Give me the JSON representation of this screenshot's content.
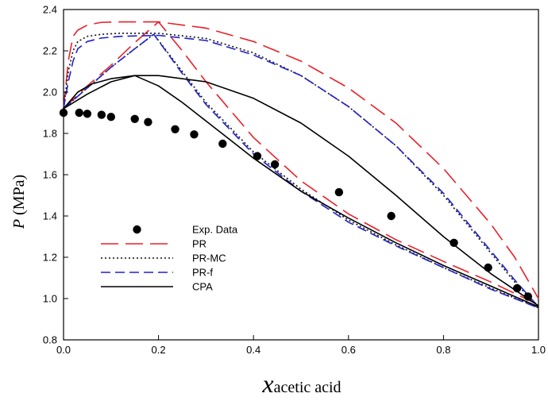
{
  "chart_data": {
    "type": "line",
    "title": "",
    "xlabel_main": "x",
    "xlabel_sub": "acetic acid",
    "ylabel_main": "P",
    "ylabel_unit": " (MPa)",
    "xlim": [
      0,
      1
    ],
    "ylim": [
      0.8,
      2.4
    ],
    "grid": false,
    "legend_position": "lower-left",
    "x_ticks": [
      "0.0",
      "0.2",
      "0.4",
      "0.6",
      "0.8",
      "1.0"
    ],
    "y_ticks": [
      "0.8",
      "1.0",
      "1.2",
      "1.4",
      "1.6",
      "1.8",
      "2.0",
      "2.2",
      "2.4"
    ],
    "experimental": {
      "name": "Exp. Data",
      "x": [
        0.0,
        0.033,
        0.05,
        0.08,
        0.1,
        0.15,
        0.178,
        0.235,
        0.275,
        0.335,
        0.408,
        0.445,
        0.58,
        0.69,
        0.822,
        0.894,
        0.955,
        0.978
      ],
      "y": [
        1.9,
        1.9,
        1.895,
        1.89,
        1.88,
        1.87,
        1.855,
        1.82,
        1.795,
        1.75,
        1.69,
        1.65,
        1.515,
        1.4,
        1.27,
        1.15,
        1.05,
        1.01
      ]
    },
    "series": [
      {
        "name": "PR",
        "color": "#e8202a",
        "dash": "long-dash",
        "branches": [
          {
            "x": [
              0.0,
              0.01,
              0.02,
              0.03,
              0.05,
              0.08,
              0.12,
              0.2,
              0.3,
              0.4,
              0.5,
              0.6,
              0.7,
              0.8,
              0.9,
              0.95,
              1.0
            ],
            "y": [
              1.92,
              2.15,
              2.27,
              2.3,
              2.325,
              2.338,
              2.34,
              2.34,
              2.31,
              2.245,
              2.15,
              2.02,
              1.85,
              1.63,
              1.36,
              1.2,
              1.0
            ]
          },
          {
            "x": [
              0.0,
              0.05,
              0.1,
              0.15,
              0.2,
              0.25,
              0.3,
              0.4,
              0.5,
              0.6,
              0.7,
              0.8,
              0.9,
              1.0
            ],
            "y": [
              1.92,
              2.03,
              2.13,
              2.24,
              2.34,
              2.2,
              2.05,
              1.78,
              1.57,
              1.41,
              1.285,
              1.18,
              1.08,
              0.97
            ]
          }
        ]
      },
      {
        "name": "PR-MC",
        "color": "#111111",
        "dash": "dotted",
        "branches": [
          {
            "x": [
              0.0,
              0.01,
              0.02,
              0.03,
              0.05,
              0.08,
              0.12,
              0.2,
              0.3,
              0.4,
              0.5,
              0.6,
              0.7,
              0.8,
              0.9,
              0.95,
              1.0
            ],
            "y": [
              1.92,
              2.1,
              2.2,
              2.245,
              2.27,
              2.28,
              2.285,
              2.285,
              2.26,
              2.19,
              2.08,
              1.93,
              1.74,
              1.5,
              1.22,
              1.08,
              0.96
            ]
          },
          {
            "x": [
              0.0,
              0.05,
              0.1,
              0.15,
              0.19,
              0.25,
              0.3,
              0.4,
              0.5,
              0.6,
              0.7,
              0.8,
              0.9,
              1.0
            ],
            "y": [
              1.92,
              2.02,
              2.12,
              2.21,
              2.28,
              2.1,
              1.95,
              1.71,
              1.53,
              1.38,
              1.26,
              1.15,
              1.05,
              0.955
            ]
          }
        ]
      },
      {
        "name": "PR-f",
        "color": "#2020c8",
        "dash": "dash",
        "branches": [
          {
            "x": [
              0.0,
              0.01,
              0.02,
              0.03,
              0.05,
              0.08,
              0.12,
              0.2,
              0.3,
              0.4,
              0.5,
              0.6,
              0.7,
              0.8,
              0.9,
              0.95,
              1.0
            ],
            "y": [
              1.92,
              2.05,
              2.15,
              2.21,
              2.245,
              2.262,
              2.27,
              2.275,
              2.25,
              2.18,
              2.08,
              1.93,
              1.74,
              1.51,
              1.23,
              1.09,
              0.96
            ]
          },
          {
            "x": [
              0.0,
              0.05,
              0.1,
              0.15,
              0.19,
              0.25,
              0.3,
              0.4,
              0.5,
              0.6,
              0.7,
              0.8,
              0.9,
              1.0
            ],
            "y": [
              1.92,
              2.02,
              2.12,
              2.21,
              2.28,
              2.09,
              1.94,
              1.7,
              1.52,
              1.37,
              1.255,
              1.15,
              1.045,
              0.955
            ]
          }
        ]
      },
      {
        "name": "CPA",
        "color": "#000000",
        "dash": "solid",
        "branches": [
          {
            "x": [
              0.0,
              0.03,
              0.06,
              0.1,
              0.15,
              0.2,
              0.3,
              0.4,
              0.5,
              0.6,
              0.7,
              0.8,
              0.9,
              1.0
            ],
            "y": [
              1.92,
              2.0,
              2.04,
              2.065,
              2.08,
              2.08,
              2.05,
              1.97,
              1.85,
              1.69,
              1.5,
              1.3,
              1.12,
              0.965
            ]
          },
          {
            "x": [
              0.0,
              0.05,
              0.1,
              0.15,
              0.2,
              0.25,
              0.3,
              0.35,
              0.4,
              0.5,
              0.6,
              0.7,
              0.8,
              0.9,
              1.0
            ],
            "y": [
              1.92,
              1.99,
              2.05,
              2.08,
              2.03,
              1.95,
              1.86,
              1.77,
              1.68,
              1.52,
              1.39,
              1.27,
              1.16,
              1.06,
              0.96
            ]
          }
        ]
      }
    ]
  }
}
